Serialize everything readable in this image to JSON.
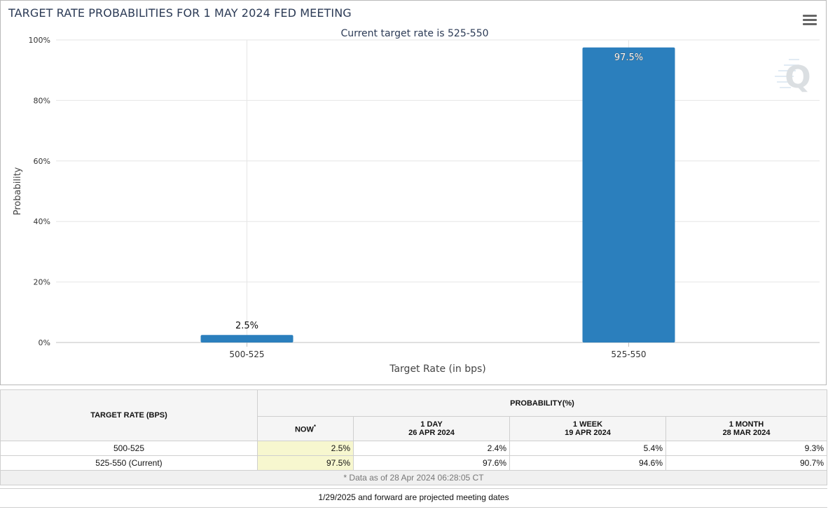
{
  "title": "TARGET RATE PROBABILITIES FOR 1 MAY 2024 FED MEETING",
  "menu_icon": "hamburger-menu-icon",
  "watermark": "Q",
  "colors": {
    "bar": "#2b7fbd",
    "title": "#2b3a55",
    "grid": "#e6e6e6",
    "now_highlight": "#f7f7cf"
  },
  "chart_data": {
    "type": "bar",
    "subtitle": "Current target rate is 525-550",
    "categories": [
      "500-525",
      "525-550"
    ],
    "values": [
      2.5,
      97.5
    ],
    "data_labels": [
      "2.5%",
      "97.5%"
    ],
    "xlabel": "Target Rate (in bps)",
    "ylabel": "Probability",
    "ylim": [
      0,
      100
    ],
    "yticks": [
      0,
      20,
      40,
      60,
      80,
      100
    ],
    "ytick_labels": [
      "0%",
      "20%",
      "40%",
      "60%",
      "80%",
      "100%"
    ],
    "grid": true
  },
  "table": {
    "target_header": "TARGET RATE (BPS)",
    "prob_header": "PROBABILITY(%)",
    "columns": [
      {
        "label": "NOW",
        "sup": "*",
        "date": ""
      },
      {
        "label": "1 DAY",
        "date": "26 APR 2024"
      },
      {
        "label": "1 WEEK",
        "date": "19 APR 2024"
      },
      {
        "label": "1 MONTH",
        "date": "28 MAR 2024"
      }
    ],
    "rows": [
      {
        "rate": "500-525",
        "values": [
          "2.5%",
          "2.4%",
          "5.4%",
          "9.3%"
        ]
      },
      {
        "rate": "525-550 (Current)",
        "values": [
          "97.5%",
          "97.6%",
          "94.6%",
          "90.7%"
        ]
      }
    ],
    "footnote": "* Data as of 28 Apr 2024 06:28:05 CT"
  },
  "projected_note": "1/29/2025 and forward are projected meeting dates"
}
